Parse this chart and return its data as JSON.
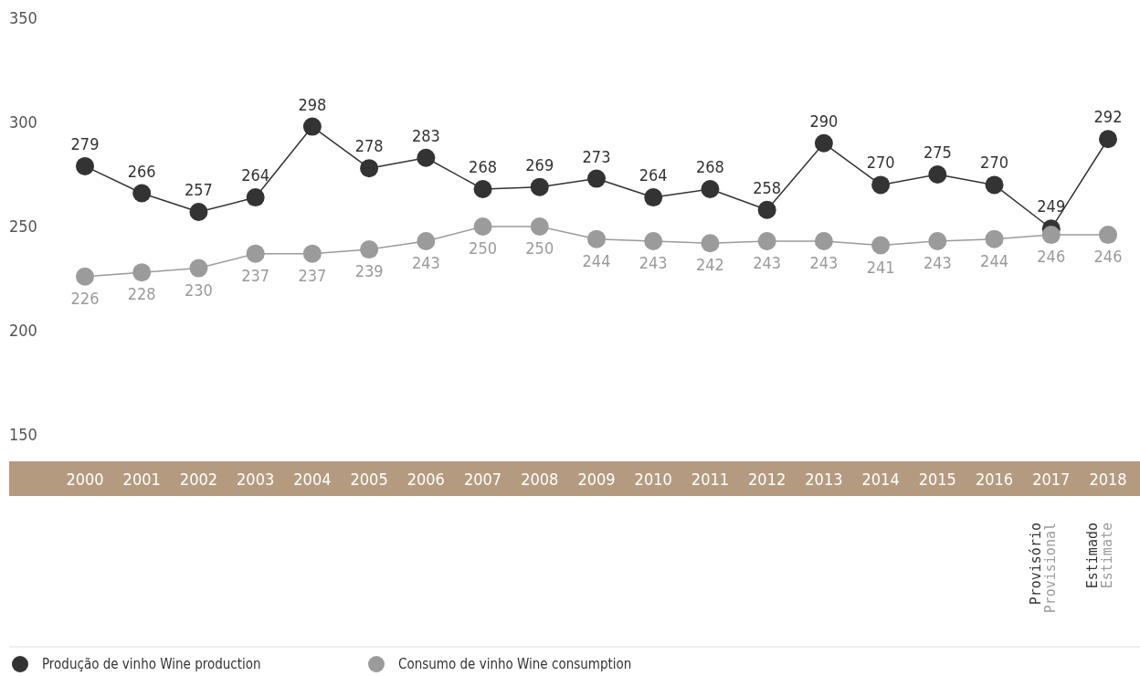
{
  "chart_data": {
    "type": "line",
    "categories": [
      "2000",
      "2001",
      "2002",
      "2003",
      "2004",
      "2005",
      "2006",
      "2007",
      "2008",
      "2009",
      "2010",
      "2011",
      "2012",
      "2013",
      "2014",
      "2015",
      "2016",
      "2017",
      "2018"
    ],
    "series": [
      {
        "name": "Produção de vinho Wine production",
        "color": "#333333",
        "values": [
          279,
          266,
          257,
          264,
          298,
          278,
          283,
          268,
          269,
          273,
          264,
          268,
          258,
          290,
          270,
          275,
          270,
          249,
          292
        ]
      },
      {
        "name": "Consumo de vinho Wine consumption",
        "color": "#9b9b9b",
        "values": [
          226,
          228,
          230,
          237,
          237,
          239,
          243,
          250,
          250,
          244,
          243,
          242,
          243,
          243,
          241,
          243,
          244,
          246,
          246
        ]
      }
    ],
    "ylim": [
      150,
      350
    ],
    "yticks": [
      150,
      200,
      250,
      300,
      350
    ],
    "grid": false,
    "data_labels": true,
    "marker": "circle",
    "line_style": "solid",
    "legend": "bottom left",
    "annotations": [
      "Provisório",
      "Provisional",
      "Estimado",
      "Estimate"
    ]
  }
}
